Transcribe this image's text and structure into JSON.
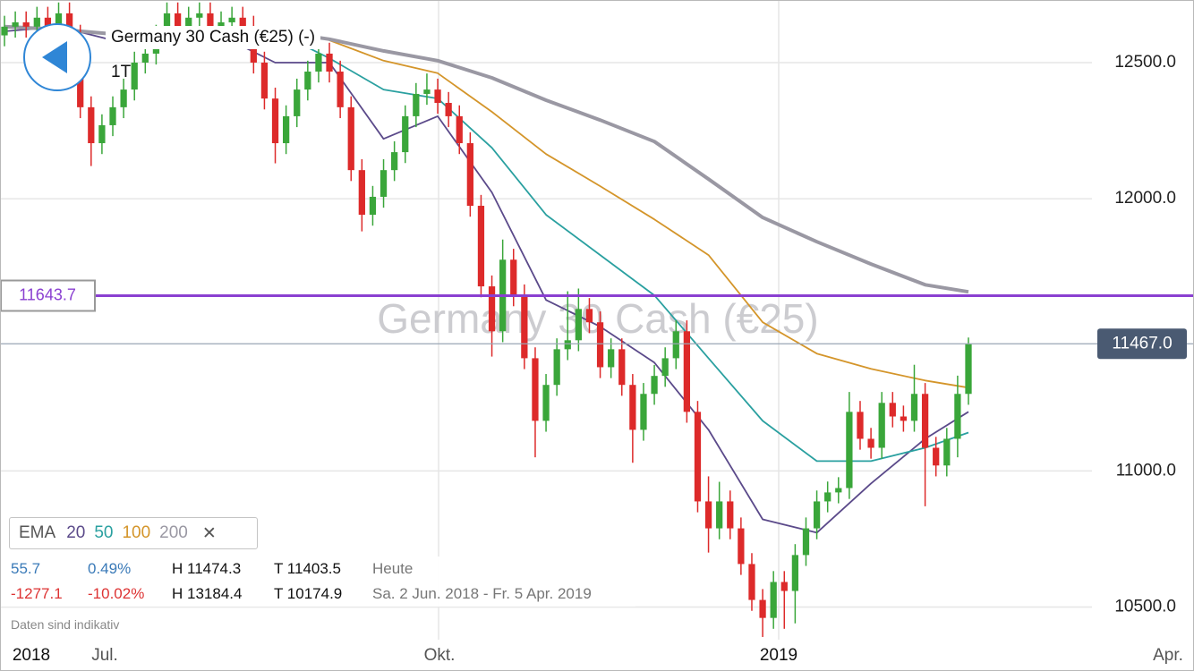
{
  "header": {
    "title": "Germany 30 Cash (€25) (-)",
    "interval": "1T"
  },
  "chart_data": {
    "type": "candlestick",
    "watermark": "Germany 30 Cash (€25)",
    "open": [
      12600,
      12632,
      12648,
      12632,
      12665,
      12615,
      12681,
      12599,
      12336,
      12204,
      12270,
      12336,
      12401,
      12500,
      12533,
      12599,
      12681,
      12632,
      12665,
      12681,
      12632,
      12648,
      12665,
      12632,
      12500,
      12368,
      12204,
      12303,
      12401,
      12467,
      12533,
      12467,
      12336,
      12105,
      11941,
      12007,
      12105,
      12171,
      12303,
      12385,
      12401,
      12352,
      12303,
      12204,
      11974,
      11678,
      11513,
      11776,
      11645,
      11414,
      11184,
      11316,
      11447,
      11480,
      11595,
      11546,
      11381,
      11447,
      11316,
      11151,
      11283,
      11349,
      11414,
      11513,
      11217,
      10888,
      10789,
      10888,
      10789,
      10658,
      10526,
      10460,
      10592,
      10559,
      10691,
      10789,
      10888,
      10921,
      10937,
      11217,
      11118,
      11085,
      11250,
      11200,
      11184,
      11283,
      11085,
      11020,
      11118,
      11283
    ],
    "high": [
      12672,
      12688,
      12688,
      12705,
      12705,
      12721,
      12721,
      12639,
      12376,
      12310,
      12376,
      12441,
      12540,
      12573,
      12639,
      12721,
      12721,
      12705,
      12721,
      12721,
      12688,
      12705,
      12705,
      12672,
      12540,
      12408,
      12343,
      12441,
      12507,
      12573,
      12573,
      12507,
      12376,
      12145,
      12047,
      12145,
      12211,
      12343,
      12425,
      12460,
      12441,
      12392,
      12343,
      12244,
      12014,
      11718,
      11850,
      11816,
      11685,
      11454,
      11356,
      11487,
      11660,
      11670,
      11635,
      11586,
      11487,
      11487,
      11356,
      11323,
      11389,
      11454,
      11553,
      11553,
      11257,
      10980,
      10960,
      10928,
      10829,
      10698,
      10566,
      10632,
      10632,
      10731,
      10829,
      10928,
      10961,
      10977,
      11290,
      11257,
      11158,
      11290,
      11290,
      11240,
      11390,
      11323,
      11125,
      11158,
      11350,
      11490
    ],
    "low": [
      12560,
      12592,
      12592,
      12592,
      12575,
      12575,
      12559,
      12296,
      12120,
      12164,
      12230,
      12296,
      12361,
      12460,
      12493,
      12559,
      12592,
      12592,
      12625,
      12592,
      12592,
      12608,
      12592,
      12460,
      12328,
      12130,
      12164,
      12263,
      12361,
      12427,
      12427,
      12296,
      12065,
      11880,
      11901,
      11967,
      12065,
      12131,
      12263,
      12345,
      12312,
      12263,
      12164,
      11934,
      11638,
      11420,
      11473,
      11605,
      11374,
      11050,
      11144,
      11276,
      11407,
      11440,
      11506,
      11341,
      11341,
      11276,
      11030,
      11111,
      11243,
      11309,
      11374,
      11177,
      10848,
      10700,
      10749,
      10749,
      10618,
      10486,
      10390,
      10420,
      10420,
      10440,
      10651,
      10749,
      10848,
      10881,
      10897,
      11078,
      11045,
      11045,
      11160,
      11144,
      11144,
      10870,
      10980,
      10980,
      11050,
      11243
    ],
    "close": [
      12632,
      12648,
      12632,
      12665,
      12615,
      12681,
      12599,
      12336,
      12204,
      12270,
      12336,
      12401,
      12500,
      12533,
      12599,
      12681,
      12632,
      12665,
      12681,
      12632,
      12648,
      12665,
      12632,
      12500,
      12368,
      12204,
      12303,
      12401,
      12467,
      12533,
      12467,
      12336,
      12105,
      11941,
      12007,
      12105,
      12171,
      12303,
      12385,
      12401,
      12352,
      12303,
      12204,
      11974,
      11678,
      11513,
      11776,
      11645,
      11414,
      11184,
      11316,
      11447,
      11480,
      11595,
      11546,
      11381,
      11447,
      11316,
      11151,
      11283,
      11349,
      11414,
      11513,
      11217,
      10888,
      10789,
      10888,
      10789,
      10658,
      10526,
      10460,
      10592,
      10559,
      10691,
      10789,
      10888,
      10921,
      10937,
      11217,
      11118,
      11085,
      11250,
      11200,
      11184,
      11283,
      11085,
      11020,
      11118,
      11283,
      11467
    ],
    "up_color": "#3aa63a",
    "down_color": "#dd2a2a",
    "ylim": [
      10380,
      12730
    ],
    "yticks": [
      {
        "value": 10500,
        "label": "10500.0"
      },
      {
        "value": 11000,
        "label": "11000.0"
      },
      {
        "value": 12000,
        "label": "12000.0"
      },
      {
        "value": 12500,
        "label": "12500.0"
      }
    ],
    "grid": true,
    "x_labels": [
      "2018",
      "Jul.",
      "Okt.",
      "2019",
      "Apr."
    ],
    "legend_label": "EMA",
    "series": [
      {
        "name": "20",
        "color": "#5b4a8a",
        "x": [
          0,
          5,
          10,
          15,
          20,
          25,
          30,
          35,
          40,
          45,
          50,
          55,
          60,
          65,
          70,
          75,
          80,
          85,
          89
        ],
        "values": [
          12615,
          12632,
          12582,
          12599,
          12599,
          12500,
          12500,
          12220,
          12303,
          12023,
          11628,
          11530,
          11398,
          11151,
          10822,
          10773,
          10954,
          11118,
          11217
        ]
      },
      {
        "name": "50",
        "color": "#2aa0a0",
        "x": [
          25,
          30,
          35,
          40,
          45,
          50,
          55,
          60,
          65,
          70,
          75,
          80,
          85,
          89
        ],
        "values": [
          12615,
          12516,
          12401,
          12368,
          12187,
          11941,
          11793,
          11645,
          11414,
          11184,
          11036,
          11036,
          11085,
          11141
        ]
      },
      {
        "name": "100",
        "color": "#d4952a",
        "x": [
          30,
          35,
          40,
          45,
          50,
          55,
          60,
          65,
          70,
          75,
          80,
          85,
          89
        ],
        "values": [
          12582,
          12507,
          12461,
          12319,
          12164,
          12046,
          11924,
          11793,
          11546,
          11431,
          11375,
          11332,
          11306
        ]
      },
      {
        "name": "200",
        "color": "#9a98a3",
        "x": [
          0,
          5,
          10,
          15,
          20,
          25,
          30,
          35,
          40,
          45,
          50,
          55,
          60,
          65,
          70,
          75,
          80,
          85,
          89
        ],
        "values": [
          12632,
          12622,
          12605,
          12625,
          12615,
          12615,
          12586,
          12543,
          12507,
          12444,
          12362,
          12289,
          12210,
          12072,
          11931,
          11842,
          11760,
          11684,
          11658
        ]
      }
    ],
    "levels": [
      {
        "value": 11643.7,
        "label": "11643.7",
        "color": "#8a3fd1"
      },
      {
        "value": 11467.0,
        "label": "11467.0",
        "color": "#4a5a72"
      }
    ]
  },
  "stats": {
    "rows": [
      [
        "55.7",
        "0.49%",
        "H 11474.3",
        "T 11403.5",
        "Heute"
      ],
      [
        "-1277.1",
        "-10.02%",
        "H 13184.4",
        "T 10174.9",
        "Sa. 2 Jun. 2018 - Fr. 5 Apr. 2019"
      ]
    ]
  },
  "note": "Daten sind indikativ"
}
